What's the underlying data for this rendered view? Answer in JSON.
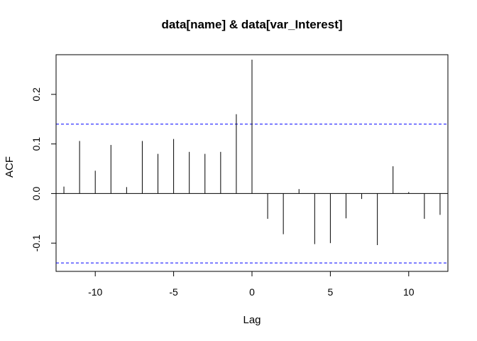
{
  "chart_data": {
    "type": "bar",
    "title": "data[name] & data[var_Interest]",
    "xlabel": "Lag",
    "ylabel": "ACF",
    "xlim": [
      -12.5,
      12.5
    ],
    "ylim": [
      -0.157,
      0.28
    ],
    "x_ticks": [
      -10,
      -5,
      0,
      5,
      10
    ],
    "y_ticks": [
      -0.1,
      0.0,
      0.1,
      0.2
    ],
    "x_tick_labels": [
      "-10",
      "-5",
      "0",
      "5",
      "10"
    ],
    "y_tick_labels": [
      "-0.1",
      "0.0",
      "0.1",
      "0.2"
    ],
    "confidence_bound": 0.14,
    "series": [
      {
        "x": [
          -12,
          -11,
          -10,
          -9,
          -8,
          -7,
          -6,
          -5,
          -4,
          -3,
          -2,
          -1,
          0,
          1,
          2,
          3,
          4,
          5,
          6,
          7,
          8,
          9,
          10,
          11,
          12
        ],
        "values": [
          0.014,
          0.106,
          0.046,
          0.098,
          0.013,
          0.106,
          0.08,
          0.11,
          0.084,
          0.08,
          0.084,
          0.16,
          0.27,
          -0.051,
          -0.082,
          0.009,
          -0.102,
          -0.1,
          -0.05,
          -0.011,
          -0.104,
          0.055,
          0.003,
          -0.051,
          -0.043
        ]
      }
    ],
    "colors": {
      "bars": "#000000",
      "confidence": "#0000ff",
      "zero_line": "#000000"
    },
    "grid": false
  }
}
